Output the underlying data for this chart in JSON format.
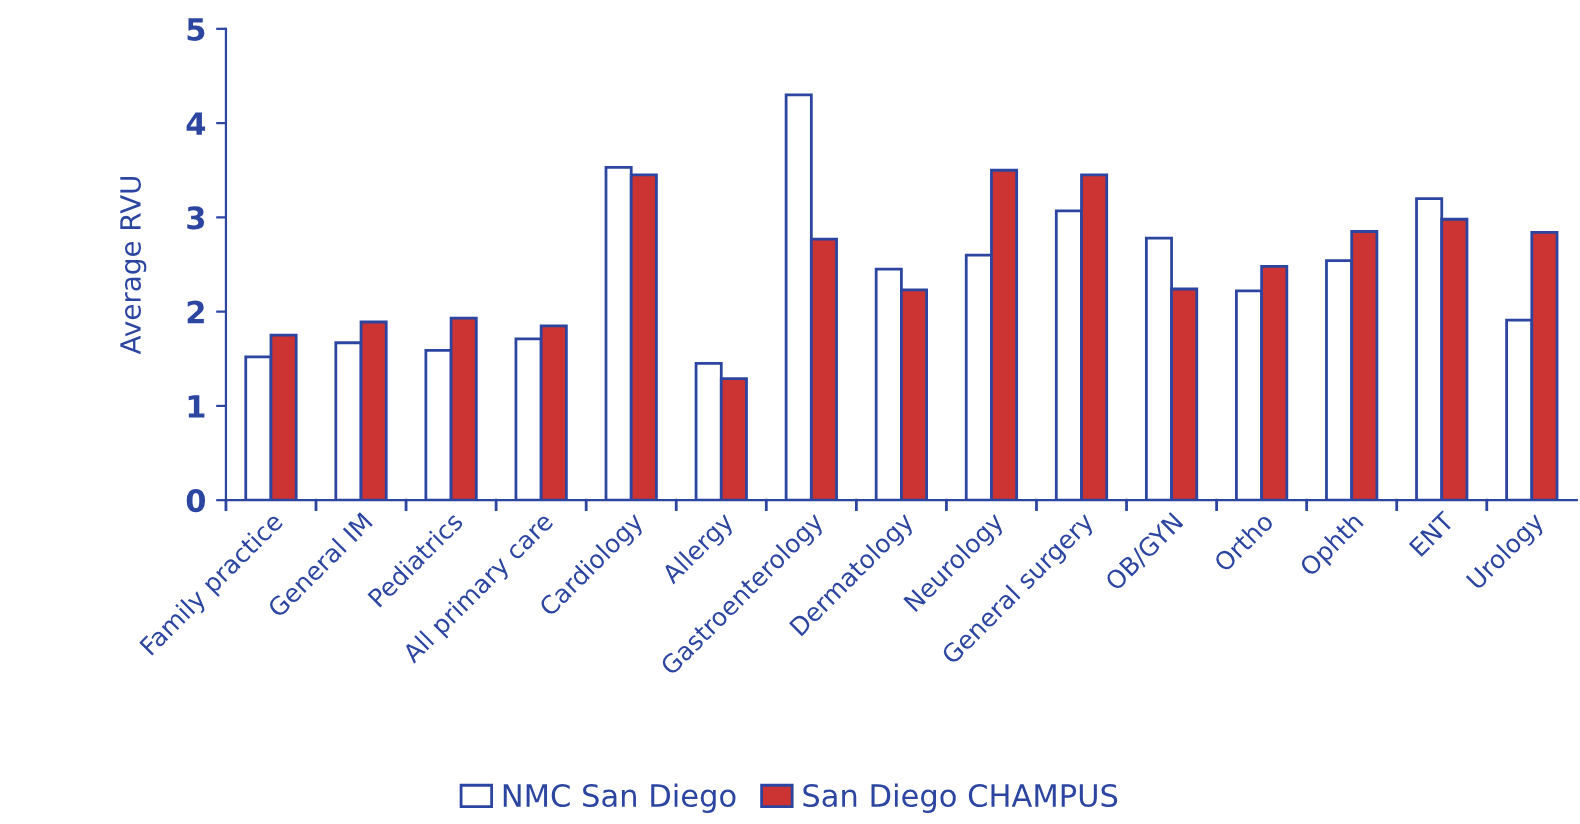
{
  "chart_data": {
    "type": "bar",
    "ylabel": "Average RVU",
    "categories": [
      "Family practice",
      "General IM",
      "Pediatrics",
      "All primary care",
      "Cardiology",
      "Allergy",
      "Gastroenterology",
      "Dermatology",
      "Neurology",
      "General surgery",
      "OB/GYN",
      "Ortho",
      "Ophth",
      "ENT",
      "Urology"
    ],
    "series": [
      {
        "name": "NMC San Diego",
        "color": "#ffffff",
        "values": [
          1.52,
          1.67,
          1.59,
          1.71,
          3.53,
          1.45,
          4.3,
          2.45,
          2.6,
          3.07,
          2.78,
          2.22,
          2.54,
          3.2,
          1.91
        ]
      },
      {
        "name": "San Diego CHAMPUS",
        "color": "#cc3333",
        "values": [
          1.75,
          1.89,
          1.93,
          1.85,
          3.45,
          1.29,
          2.77,
          2.23,
          3.5,
          3.45,
          2.24,
          2.48,
          2.85,
          2.98,
          2.84
        ]
      }
    ],
    "ylim": [
      0,
      5
    ],
    "yticks": [
      0,
      1,
      2,
      3,
      4,
      5
    ],
    "grid": false,
    "legend": "bottom"
  }
}
